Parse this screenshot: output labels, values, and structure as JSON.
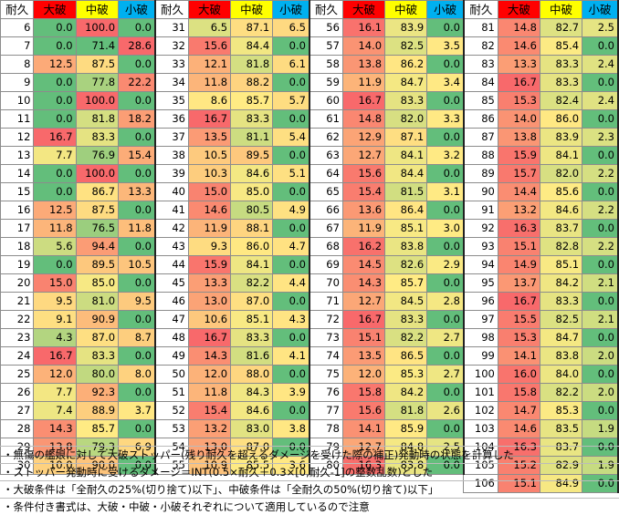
{
  "colors": {
    "white": "#ffffff",
    "header_red": "#ff0000",
    "header_yellow": "#ffff00",
    "header_cyan": "#00b0f0"
  },
  "headers": {
    "durability": "耐久",
    "heavy": "大破",
    "moderate": "中破",
    "minor": "小破"
  },
  "blocks": [
    {
      "rows": [
        [
          "6",
          "0.0",
          "100.0",
          "0.0"
        ],
        [
          "7",
          "0.0",
          "71.4",
          "28.6"
        ],
        [
          "8",
          "12.5",
          "87.5",
          "0.0"
        ],
        [
          "9",
          "0.0",
          "77.8",
          "22.2"
        ],
        [
          "10",
          "0.0",
          "100.0",
          "0.0"
        ],
        [
          "11",
          "0.0",
          "81.8",
          "18.2"
        ],
        [
          "12",
          "16.7",
          "83.3",
          "0.0"
        ],
        [
          "13",
          "7.7",
          "76.9",
          "15.4"
        ],
        [
          "14",
          "0.0",
          "100.0",
          "0.0"
        ],
        [
          "15",
          "0.0",
          "86.7",
          "13.3"
        ],
        [
          "16",
          "12.5",
          "87.5",
          "0.0"
        ],
        [
          "17",
          "11.8",
          "76.5",
          "11.8"
        ],
        [
          "18",
          "5.6",
          "94.4",
          "0.0"
        ],
        [
          "19",
          "0.0",
          "89.5",
          "10.5"
        ],
        [
          "20",
          "15.0",
          "85.0",
          "0.0"
        ],
        [
          "21",
          "9.5",
          "81.0",
          "9.5"
        ],
        [
          "22",
          "9.1",
          "90.9",
          "0.0"
        ],
        [
          "23",
          "4.3",
          "87.0",
          "8.7"
        ],
        [
          "24",
          "16.7",
          "83.3",
          "0.0"
        ],
        [
          "25",
          "12.0",
          "80.0",
          "8.0"
        ],
        [
          "26",
          "7.7",
          "92.3",
          "0.0"
        ],
        [
          "27",
          "7.4",
          "88.9",
          "3.7"
        ],
        [
          "28",
          "14.3",
          "85.7",
          "0.0"
        ],
        [
          "29",
          "13.8",
          "79.3",
          "6.9"
        ],
        [
          "30",
          "10.0",
          "90.0",
          "0.0"
        ]
      ]
    },
    {
      "rows": [
        [
          "31",
          "6.5",
          "87.1",
          "6.5"
        ],
        [
          "32",
          "15.6",
          "84.4",
          "0.0"
        ],
        [
          "33",
          "12.1",
          "81.8",
          "6.1"
        ],
        [
          "34",
          "11.8",
          "88.2",
          "0.0"
        ],
        [
          "35",
          "8.6",
          "85.7",
          "5.7"
        ],
        [
          "36",
          "16.7",
          "83.3",
          "0.0"
        ],
        [
          "37",
          "13.5",
          "81.1",
          "5.4"
        ],
        [
          "38",
          "10.5",
          "89.5",
          "0.0"
        ],
        [
          "39",
          "10.3",
          "84.6",
          "5.1"
        ],
        [
          "40",
          "15.0",
          "85.0",
          "0.0"
        ],
        [
          "41",
          "14.6",
          "80.5",
          "4.9"
        ],
        [
          "42",
          "11.9",
          "88.1",
          "0.0"
        ],
        [
          "43",
          "9.3",
          "86.0",
          "4.7"
        ],
        [
          "44",
          "15.9",
          "84.1",
          "0.0"
        ],
        [
          "45",
          "13.3",
          "82.2",
          "4.4"
        ],
        [
          "46",
          "13.0",
          "87.0",
          "0.0"
        ],
        [
          "47",
          "10.6",
          "85.1",
          "4.3"
        ],
        [
          "48",
          "16.7",
          "83.3",
          "0.0"
        ],
        [
          "49",
          "14.3",
          "81.6",
          "4.1"
        ],
        [
          "50",
          "12.0",
          "88.0",
          "0.0"
        ],
        [
          "51",
          "11.8",
          "84.3",
          "3.9"
        ],
        [
          "52",
          "15.4",
          "84.6",
          "0.0"
        ],
        [
          "53",
          "13.2",
          "83.0",
          "3.8"
        ],
        [
          "54",
          "13.0",
          "87.0",
          "0.0"
        ],
        [
          "55",
          "10.9",
          "85.5",
          "3.6"
        ]
      ]
    },
    {
      "rows": [
        [
          "56",
          "16.1",
          "83.9",
          "0.0"
        ],
        [
          "57",
          "14.0",
          "82.5",
          "3.5"
        ],
        [
          "58",
          "13.8",
          "86.2",
          "0.0"
        ],
        [
          "59",
          "11.9",
          "84.7",
          "3.4"
        ],
        [
          "60",
          "16.7",
          "83.3",
          "0.0"
        ],
        [
          "61",
          "14.8",
          "82.0",
          "3.3"
        ],
        [
          "62",
          "12.9",
          "87.1",
          "0.0"
        ],
        [
          "63",
          "12.7",
          "84.1",
          "3.2"
        ],
        [
          "64",
          "15.6",
          "84.4",
          "0.0"
        ],
        [
          "65",
          "15.4",
          "81.5",
          "3.1"
        ],
        [
          "66",
          "13.6",
          "86.4",
          "0.0"
        ],
        [
          "67",
          "11.9",
          "85.1",
          "3.0"
        ],
        [
          "68",
          "16.2",
          "83.8",
          "0.0"
        ],
        [
          "69",
          "14.5",
          "82.6",
          "2.9"
        ],
        [
          "70",
          "14.3",
          "85.7",
          "0.0"
        ],
        [
          "71",
          "12.7",
          "84.5",
          "2.8"
        ],
        [
          "72",
          "16.7",
          "83.3",
          "0.0"
        ],
        [
          "73",
          "15.1",
          "82.2",
          "2.7"
        ],
        [
          "74",
          "13.5",
          "86.5",
          "0.0"
        ],
        [
          "75",
          "12.0",
          "85.3",
          "2.7"
        ],
        [
          "76",
          "15.8",
          "84.2",
          "0.0"
        ],
        [
          "77",
          "15.6",
          "81.8",
          "2.6"
        ],
        [
          "78",
          "14.1",
          "85.9",
          "0.0"
        ],
        [
          "79",
          "12.7",
          "84.8",
          "2.5"
        ],
        [
          "80",
          "16.3",
          "83.8",
          "0.0"
        ]
      ]
    },
    {
      "rows": [
        [
          "81",
          "14.8",
          "82.7",
          "2.5"
        ],
        [
          "82",
          "14.6",
          "85.4",
          "0.0"
        ],
        [
          "83",
          "13.3",
          "83.3",
          "2.4"
        ],
        [
          "84",
          "16.7",
          "83.3",
          "0.0"
        ],
        [
          "85",
          "15.3",
          "82.4",
          "2.4"
        ],
        [
          "86",
          "14.0",
          "86.0",
          "0.0"
        ],
        [
          "87",
          "13.8",
          "83.9",
          "2.3"
        ],
        [
          "88",
          "15.9",
          "84.1",
          "0.0"
        ],
        [
          "89",
          "15.7",
          "82.0",
          "2.2"
        ],
        [
          "90",
          "14.4",
          "85.6",
          "0.0"
        ],
        [
          "91",
          "13.2",
          "84.6",
          "2.2"
        ],
        [
          "92",
          "16.3",
          "83.7",
          "0.0"
        ],
        [
          "93",
          "15.1",
          "82.8",
          "2.2"
        ],
        [
          "94",
          "14.9",
          "85.1",
          "0.0"
        ],
        [
          "95",
          "13.7",
          "84.2",
          "2.1"
        ],
        [
          "96",
          "16.7",
          "83.3",
          "0.0"
        ],
        [
          "97",
          "15.5",
          "82.5",
          "2.1"
        ],
        [
          "98",
          "15.3",
          "84.7",
          "0.0"
        ],
        [
          "99",
          "14.1",
          "83.8",
          "2.0"
        ],
        [
          "100",
          "16.0",
          "84.0",
          "0.0"
        ],
        [
          "101",
          "15.8",
          "82.2",
          "2.0"
        ],
        [
          "102",
          "14.7",
          "85.3",
          "0.0"
        ],
        [
          "103",
          "14.6",
          "83.5",
          "1.9"
        ],
        [
          "104",
          "16.3",
          "83.7",
          "0.0"
        ],
        [
          "105",
          "15.2",
          "82.9",
          "1.9"
        ],
        [
          "106",
          "15.1",
          "84.9",
          "0.0"
        ]
      ]
    }
  ],
  "notes": [
    "・無傷の艦娘に対して大破ストッパー(残り耐久を超えるダメージを受けた際の補正)発動時の状態を計算した",
    "・ストッパー発動時に受けるダメージ＝INT(0.5×耐久＋0.3×[0,耐久-1]の整数乱数)とした",
    "・大破条件は「全耐久の25%(切り捨て)以下」、中破条件は「全耐久の50%(切り捨て)以下」",
    "・条件付き書式は、大破・中破・小破それぞれについて適用しているので注意"
  ]
}
